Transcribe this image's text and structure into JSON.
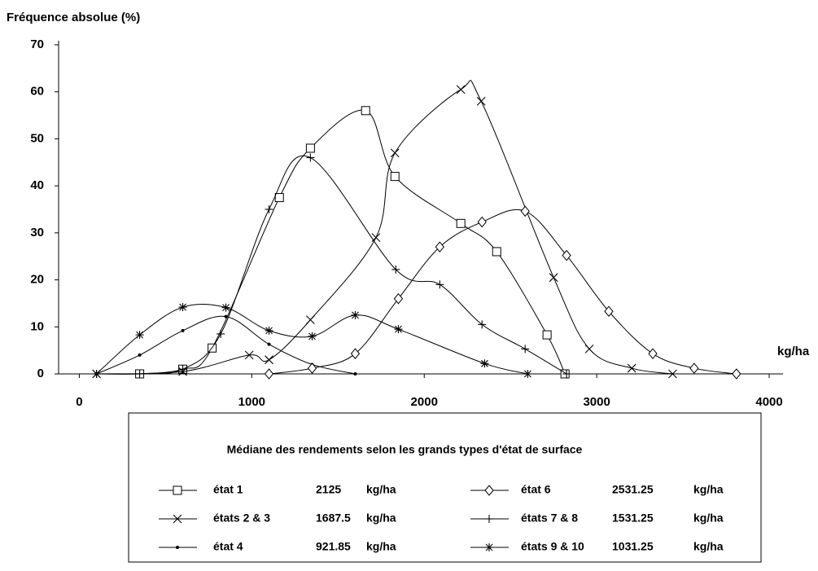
{
  "chart_data": {
    "type": "line",
    "y_label": "Fréquence absolue (%)",
    "x_label": "kg/ha",
    "xlim": [
      -120,
      4080
    ],
    "xticks": [
      0,
      1000,
      2000,
      3000,
      4000
    ],
    "ylim": [
      0,
      70
    ],
    "yticks": [
      0,
      10,
      20,
      30,
      40,
      50,
      60,
      70
    ],
    "legend_title": "Médiane des rendements selon les grands types d'état de surface",
    "legend_unit": "kg/ha",
    "series": [
      {
        "name": "état 1",
        "median": 2125,
        "marker": "square",
        "color": "#000000",
        "x": [
          350,
          600,
          770,
          1160,
          1340,
          1660,
          1830,
          2212,
          2420,
          2712,
          2816
        ],
        "values": [
          0,
          1,
          5.5,
          37.5,
          48,
          56,
          42,
          32,
          26,
          8.3,
          0
        ]
      },
      {
        "name": "états 2 & 3",
        "median": 1687.5,
        "marker": "x",
        "color": "#000000",
        "x": [
          100,
          600,
          985,
          1100,
          1340,
          1720,
          1830,
          2212,
          2330,
          2750,
          2957,
          3203,
          3440
        ],
        "values": [
          0,
          0.5,
          4,
          3,
          11.5,
          29,
          47,
          60.5,
          58,
          20.5,
          5.3,
          1.2,
          0
        ]
      },
      {
        "name": "état 4",
        "median": 921.85,
        "marker": "dot",
        "color": "#000000",
        "x": [
          100,
          350,
          600,
          850,
          1100,
          1350,
          1600
        ],
        "values": [
          0,
          4,
          9.2,
          12.2,
          6.3,
          2,
          0
        ]
      },
      {
        "name": "état 6",
        "median": 2531.25,
        "marker": "diamond",
        "color": "#000000",
        "x": [
          1100,
          1350,
          1600,
          1850,
          2090,
          2335,
          2585,
          2825,
          3070,
          3325,
          3565,
          3810
        ],
        "values": [
          0,
          1.2,
          4.3,
          16,
          27,
          32.3,
          34.6,
          25.2,
          13.3,
          4.3,
          1.2,
          0
        ]
      },
      {
        "name": "états 7 & 8",
        "median": 1531.25,
        "marker": "plus",
        "color": "#000000",
        "x": [
          100,
          350,
          600,
          820,
          1100,
          1340,
          1835,
          2090,
          2335,
          2585,
          2825
        ],
        "values": [
          0,
          0,
          1,
          8.5,
          35,
          46,
          22.2,
          19,
          10.5,
          5.3,
          0
        ]
      },
      {
        "name": "états 9 & 10",
        "median": 1031.25,
        "marker": "asterisk",
        "color": "#000000",
        "x": [
          100,
          350,
          600,
          850,
          1100,
          1350,
          1600,
          1850,
          2350,
          2600
        ],
        "values": [
          0,
          8.3,
          14.2,
          14.1,
          9.2,
          8,
          12.5,
          9.5,
          2.2,
          0
        ]
      }
    ]
  }
}
